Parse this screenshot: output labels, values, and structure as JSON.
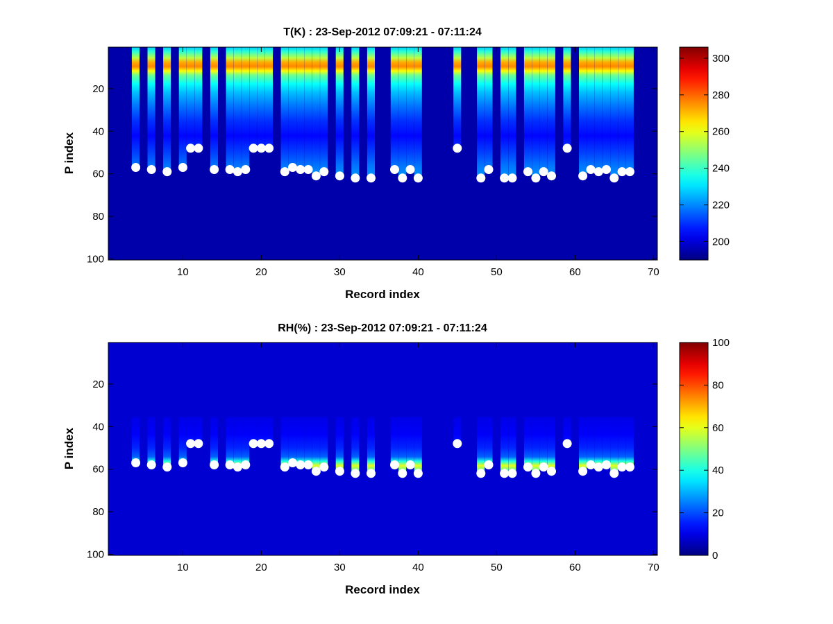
{
  "chart_data": [
    {
      "type": "heatmap",
      "title": "T(K) : 23-Sep-2012 07:09:21 - 07:11:24",
      "xlabel": "Record index",
      "ylabel": "P index",
      "xlim": [
        0.5,
        70.5
      ],
      "ylim": [
        0.5,
        100.5
      ],
      "y_reversed": true,
      "xticks": [
        "10",
        "20",
        "30",
        "40",
        "50",
        "60",
        "70"
      ],
      "yticks": [
        "20",
        "40",
        "60",
        "80",
        "100"
      ],
      "colorbar": {
        "min": 190,
        "max": 306,
        "ticks": [
          "200",
          "220",
          "240",
          "260",
          "280",
          "300"
        ]
      },
      "background_value": 195,
      "profile_top": [
        {
          "p": 1,
          "value": 228
        },
        {
          "p": 3,
          "value": 238
        },
        {
          "p": 6,
          "value": 255
        },
        {
          "p": 8,
          "value": 272
        },
        {
          "p": 10,
          "value": 276
        },
        {
          "p": 12,
          "value": 262
        },
        {
          "p": 14,
          "value": 246
        },
        {
          "p": 18,
          "value": 234
        },
        {
          "p": 22,
          "value": 226
        },
        {
          "p": 28,
          "value": 218
        },
        {
          "p": 35,
          "value": 210
        },
        {
          "p": 42,
          "value": 205
        },
        {
          "p": 50,
          "value": 212
        },
        {
          "p": 56,
          "value": 218
        },
        {
          "p": 62,
          "value": 222
        }
      ],
      "records": [
        4,
        6,
        8,
        10,
        11,
        12,
        14,
        16,
        17,
        18,
        19,
        20,
        21,
        23,
        24,
        25,
        26,
        27,
        28,
        30,
        32,
        34,
        37,
        38,
        39,
        40,
        45,
        48,
        49,
        51,
        52,
        54,
        55,
        56,
        57,
        59,
        61,
        62,
        63,
        64,
        65,
        66,
        67
      ],
      "markers": [
        {
          "x": 4,
          "y": 57
        },
        {
          "x": 6,
          "y": 58
        },
        {
          "x": 8,
          "y": 59
        },
        {
          "x": 10,
          "y": 57
        },
        {
          "x": 11,
          "y": 48
        },
        {
          "x": 12,
          "y": 48
        },
        {
          "x": 14,
          "y": 58
        },
        {
          "x": 16,
          "y": 58
        },
        {
          "x": 17,
          "y": 59
        },
        {
          "x": 18,
          "y": 58
        },
        {
          "x": 19,
          "y": 48
        },
        {
          "x": 20,
          "y": 48
        },
        {
          "x": 21,
          "y": 48
        },
        {
          "x": 23,
          "y": 59
        },
        {
          "x": 24,
          "y": 57
        },
        {
          "x": 25,
          "y": 58
        },
        {
          "x": 26,
          "y": 58
        },
        {
          "x": 27,
          "y": 61
        },
        {
          "x": 28,
          "y": 59
        },
        {
          "x": 30,
          "y": 61
        },
        {
          "x": 32,
          "y": 62
        },
        {
          "x": 34,
          "y": 62
        },
        {
          "x": 37,
          "y": 58
        },
        {
          "x": 38,
          "y": 62
        },
        {
          "x": 39,
          "y": 58
        },
        {
          "x": 40,
          "y": 62
        },
        {
          "x": 45,
          "y": 48
        },
        {
          "x": 48,
          "y": 62
        },
        {
          "x": 49,
          "y": 58
        },
        {
          "x": 51,
          "y": 62
        },
        {
          "x": 52,
          "y": 62
        },
        {
          "x": 54,
          "y": 59
        },
        {
          "x": 55,
          "y": 62
        },
        {
          "x": 56,
          "y": 59
        },
        {
          "x": 57,
          "y": 61
        },
        {
          "x": 59,
          "y": 48
        },
        {
          "x": 61,
          "y": 61
        },
        {
          "x": 62,
          "y": 58
        },
        {
          "x": 63,
          "y": 59
        },
        {
          "x": 64,
          "y": 58
        },
        {
          "x": 65,
          "y": 62
        },
        {
          "x": 66,
          "y": 59
        },
        {
          "x": 67,
          "y": 59
        }
      ]
    },
    {
      "type": "heatmap",
      "title": "RH(%) : 23-Sep-2012 07:09:21 - 07:11:24",
      "xlabel": "Record index",
      "ylabel": "P index",
      "xlim": [
        0.5,
        70.5
      ],
      "ylim": [
        0.5,
        100.5
      ],
      "y_reversed": true,
      "xticks": [
        "10",
        "20",
        "30",
        "40",
        "50",
        "60",
        "70"
      ],
      "yticks": [
        "20",
        "40",
        "60",
        "80",
        "100"
      ],
      "colorbar": {
        "min": 0,
        "max": 100,
        "ticks": [
          "0",
          "20",
          "40",
          "60",
          "80",
          "100"
        ]
      },
      "background_value": 8,
      "profile_top": [
        {
          "p": 36,
          "value": 10
        },
        {
          "p": 44,
          "value": 12
        },
        {
          "p": 50,
          "value": 16
        },
        {
          "p": 54,
          "value": 22
        },
        {
          "p": 56,
          "value": 40
        },
        {
          "p": 58,
          "value": 60
        },
        {
          "p": 60,
          "value": 48
        },
        {
          "p": 62,
          "value": 30
        }
      ],
      "records": [
        4,
        6,
        8,
        10,
        11,
        12,
        14,
        16,
        17,
        18,
        19,
        20,
        21,
        23,
        24,
        25,
        26,
        27,
        28,
        30,
        32,
        34,
        37,
        38,
        39,
        40,
        45,
        48,
        49,
        51,
        52,
        54,
        55,
        56,
        57,
        59,
        61,
        62,
        63,
        64,
        65,
        66,
        67
      ],
      "markers": [
        {
          "x": 4,
          "y": 57
        },
        {
          "x": 6,
          "y": 58
        },
        {
          "x": 8,
          "y": 59
        },
        {
          "x": 10,
          "y": 57
        },
        {
          "x": 11,
          "y": 48
        },
        {
          "x": 12,
          "y": 48
        },
        {
          "x": 14,
          "y": 58
        },
        {
          "x": 16,
          "y": 58
        },
        {
          "x": 17,
          "y": 59
        },
        {
          "x": 18,
          "y": 58
        },
        {
          "x": 19,
          "y": 48
        },
        {
          "x": 20,
          "y": 48
        },
        {
          "x": 21,
          "y": 48
        },
        {
          "x": 23,
          "y": 59
        },
        {
          "x": 24,
          "y": 57
        },
        {
          "x": 25,
          "y": 58
        },
        {
          "x": 26,
          "y": 58
        },
        {
          "x": 27,
          "y": 61
        },
        {
          "x": 28,
          "y": 59
        },
        {
          "x": 30,
          "y": 61
        },
        {
          "x": 32,
          "y": 62
        },
        {
          "x": 34,
          "y": 62
        },
        {
          "x": 37,
          "y": 58
        },
        {
          "x": 38,
          "y": 62
        },
        {
          "x": 39,
          "y": 58
        },
        {
          "x": 40,
          "y": 62
        },
        {
          "x": 45,
          "y": 48
        },
        {
          "x": 48,
          "y": 62
        },
        {
          "x": 49,
          "y": 58
        },
        {
          "x": 51,
          "y": 62
        },
        {
          "x": 52,
          "y": 62
        },
        {
          "x": 54,
          "y": 59
        },
        {
          "x": 55,
          "y": 62
        },
        {
          "x": 56,
          "y": 59
        },
        {
          "x": 57,
          "y": 61
        },
        {
          "x": 59,
          "y": 48
        },
        {
          "x": 61,
          "y": 61
        },
        {
          "x": 62,
          "y": 58
        },
        {
          "x": 63,
          "y": 59
        },
        {
          "x": 64,
          "y": 58
        },
        {
          "x": 65,
          "y": 62
        },
        {
          "x": 66,
          "y": 59
        },
        {
          "x": 67,
          "y": 59
        }
      ]
    }
  ]
}
